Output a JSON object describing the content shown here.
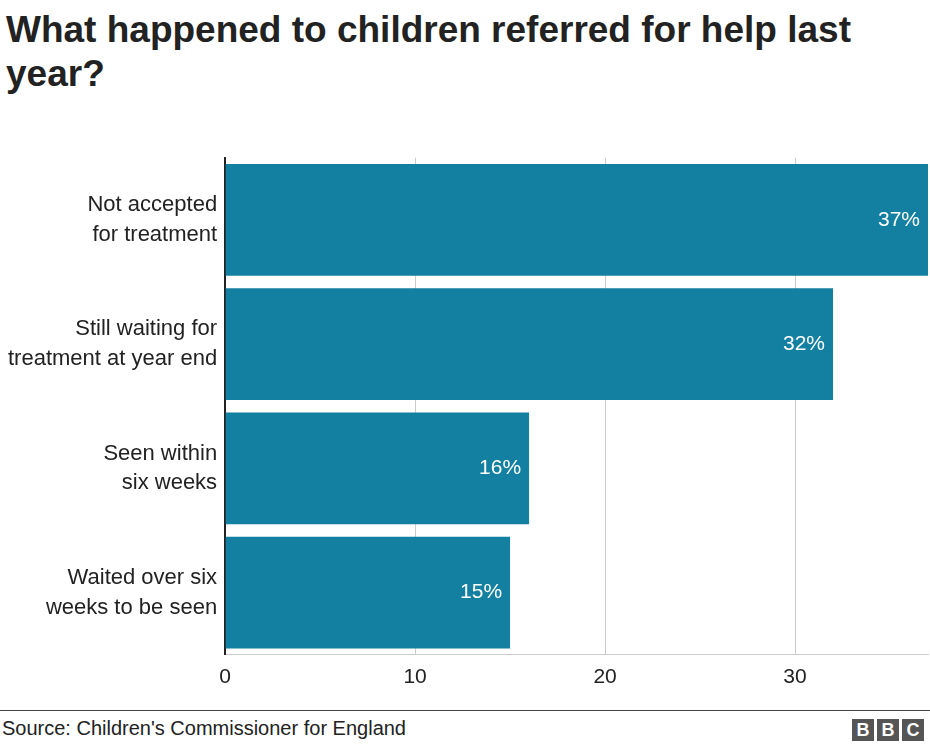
{
  "chart_data": {
    "type": "bar",
    "orientation": "horizontal",
    "title": "What happened to children referred for help last year?",
    "categories": [
      [
        "Not accepted",
        "for treatment"
      ],
      [
        "Still waiting for",
        "treatment at year end"
      ],
      [
        "Seen within",
        "six weeks"
      ],
      [
        "Waited over six",
        "weeks to be seen"
      ]
    ],
    "values": [
      37,
      32,
      16,
      15
    ],
    "value_labels": [
      "37%",
      "32%",
      "16%",
      "15%"
    ],
    "data_labels": true,
    "color": "#1380A1",
    "xlim": [
      0,
      37
    ],
    "xticks": [
      0,
      10,
      20,
      30
    ],
    "grid": true,
    "source": "Source: Children's Commissioner for England",
    "logo": "BBC"
  }
}
